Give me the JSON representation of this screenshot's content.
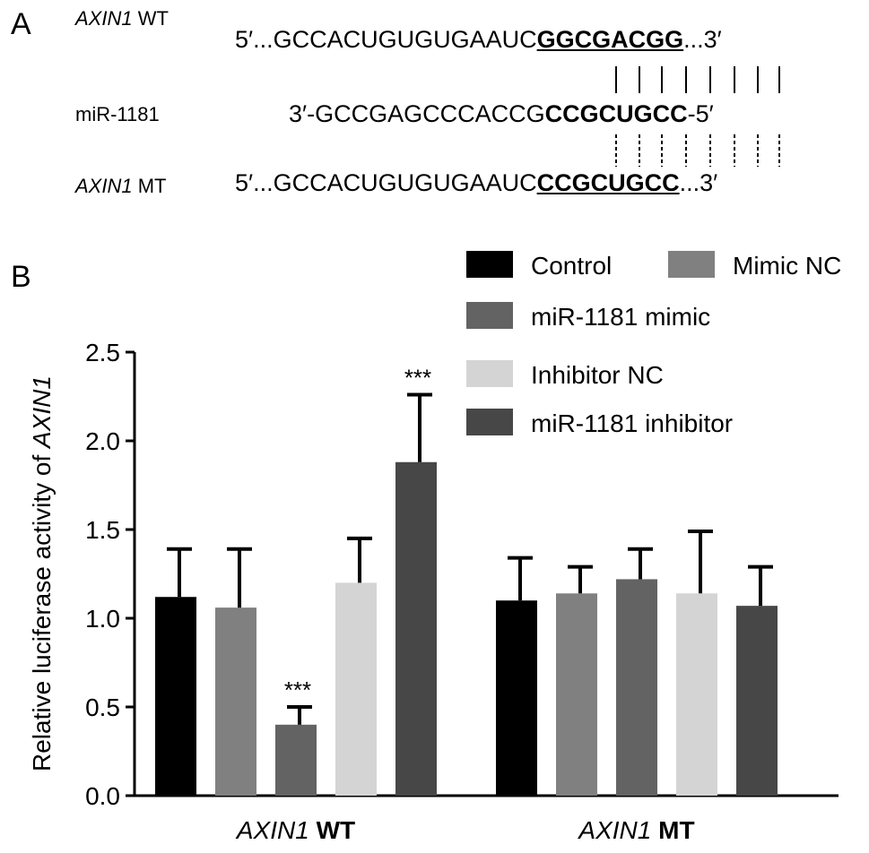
{
  "panel_a": {
    "letter": "A",
    "rows": [
      {
        "label_italic": "AXIN1",
        "label_rest": " WT",
        "seq_pre": "5′...GCCACUGUGUGAAUC",
        "seq_bold": "GGCGACGG",
        "seq_post": "...3′"
      },
      {
        "label_italic": "",
        "label_rest": "miR-1181",
        "seq_pre": "3′-GCCGAGCCCACCG",
        "seq_bold": "CCGCUGCC",
        "seq_post": "-5′"
      },
      {
        "label_italic": "AXIN1",
        "label_rest": " MT",
        "seq_pre": "5′...GCCACUGUGUGAAUC",
        "seq_bold": "CCGCUGCC",
        "seq_post": "...3′"
      }
    ]
  },
  "panel_b": {
    "letter": "B"
  },
  "chart_data": {
    "type": "bar",
    "ylabel": "Relative luciferase activity of",
    "ylabel_italic": "AXIN1",
    "ylim": [
      0,
      2.5
    ],
    "yticks": [
      "0.0",
      "0.5",
      "1.0",
      "1.5",
      "2.0",
      "2.5"
    ],
    "groups": [
      {
        "label_italic": "AXIN1",
        "label_bold": "WT"
      },
      {
        "label_italic": "AXIN1",
        "label_bold": "MT"
      }
    ],
    "series": [
      {
        "name": "Control",
        "color": "#000000",
        "values": [
          1.12,
          1.1
        ],
        "errors": [
          0.27,
          0.24
        ],
        "annotations": [
          "",
          ""
        ]
      },
      {
        "name": "Mimic NC",
        "color": "#808080",
        "values": [
          1.06,
          1.14
        ],
        "errors": [
          0.33,
          0.15
        ],
        "annotations": [
          "",
          ""
        ]
      },
      {
        "name": "miR-1181 mimic",
        "color": "#636363",
        "values": [
          0.4,
          1.22
        ],
        "errors": [
          0.1,
          0.17
        ],
        "annotations": [
          "***",
          ""
        ]
      },
      {
        "name": "Inhibitor NC",
        "color": "#d4d4d4",
        "values": [
          1.2,
          1.14
        ],
        "errors": [
          0.25,
          0.35
        ],
        "annotations": [
          "",
          ""
        ]
      },
      {
        "name": "miR-1181 inhibitor",
        "color": "#474747",
        "values": [
          1.88,
          1.07
        ],
        "errors": [
          0.38,
          0.22
        ],
        "annotations": [
          "***",
          ""
        ]
      }
    ],
    "legend_position": "top-right",
    "grid": false
  }
}
